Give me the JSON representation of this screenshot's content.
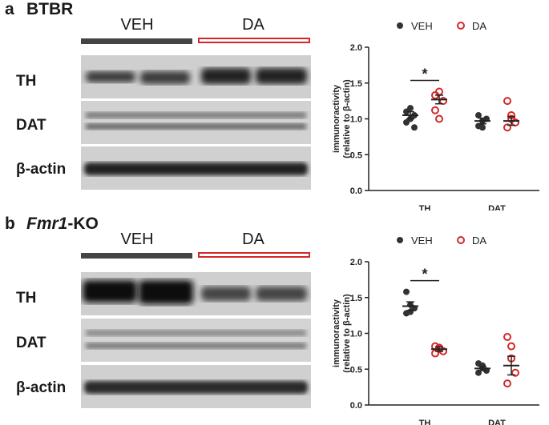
{
  "panels": [
    {
      "letter": "a",
      "title_plain": "BTBR",
      "title_italic": "",
      "title_suffix": "",
      "groups": [
        "VEH",
        "DA"
      ],
      "blots": [
        "TH",
        "DAT",
        "β-actin"
      ]
    },
    {
      "letter": "b",
      "title_plain": "",
      "title_italic": "Fmr1",
      "title_suffix": "-KO",
      "groups": [
        "VEH",
        "DA"
      ],
      "blots": [
        "TH",
        "DAT",
        "β-actin"
      ]
    }
  ],
  "chart_data": [
    {
      "type": "scatter",
      "title": "",
      "ylabel": "immunoractivity (relative to β-actin)",
      "ylabel_lines": [
        "immunoractivity",
        "(relative to β-actin)"
      ],
      "categories": [
        "TH",
        "DAT"
      ],
      "ylim": [
        0.0,
        2.0
      ],
      "yticks": [
        "0.0",
        "0.5",
        "1.0",
        "1.5",
        "2.0"
      ],
      "legend_placement": "top",
      "series": [
        {
          "name": "VEH",
          "color": "#333333",
          "marker": "filled-circle",
          "points": [
            [
              0.95,
              1.0,
              1.05,
              1.1,
              1.15,
              0.88
            ],
            [
              0.9,
              0.97,
              1.0,
              1.05,
              0.88
            ]
          ],
          "mean": [
            1.05,
            0.97
          ],
          "sem": [
            0.05,
            0.04
          ]
        },
        {
          "name": "DA",
          "color": "#d62728",
          "marker": "open-circle",
          "points": [
            [
              1.33,
              1.38,
              1.25,
              1.12,
              1.0
            ],
            [
              1.25,
              1.05,
              0.95,
              0.88,
              1.0
            ]
          ],
          "mean": [
            1.27,
            0.97
          ],
          "sem": [
            0.06,
            0.06
          ]
        }
      ],
      "annotations": [
        {
          "text": "*",
          "category": "TH"
        }
      ]
    },
    {
      "type": "scatter",
      "title": "",
      "ylabel": "immunoractivity (relative to β-actin)",
      "ylabel_lines": [
        "immunoractivity",
        "(relative to β-actin)"
      ],
      "categories": [
        "TH",
        "DAT"
      ],
      "ylim": [
        0.0,
        2.0
      ],
      "yticks": [
        "0.0",
        "0.5",
        "1.0",
        "1.5",
        "2.0"
      ],
      "legend_placement": "top",
      "series": [
        {
          "name": "VEH",
          "color": "#333333",
          "marker": "filled-circle",
          "points": [
            [
              1.58,
              1.4,
              1.35,
              1.28,
              1.3
            ],
            [
              0.58,
              0.52,
              0.48,
              0.45,
              0.55
            ]
          ],
          "mean": [
            1.38,
            0.51
          ],
          "sem": [
            0.06,
            0.03
          ]
        },
        {
          "name": "DA",
          "color": "#d62728",
          "marker": "open-circle",
          "points": [
            [
              0.82,
              0.78,
              0.75,
              0.72,
              0.8
            ],
            [
              0.95,
              0.82,
              0.45,
              0.3,
              0.65
            ]
          ],
          "mean": [
            0.78,
            0.55
          ],
          "sem": [
            0.03,
            0.13
          ]
        }
      ],
      "annotations": [
        {
          "text": "*",
          "category": "TH"
        }
      ]
    }
  ]
}
